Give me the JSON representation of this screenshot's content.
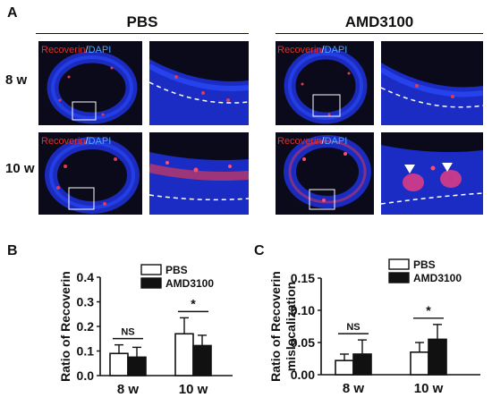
{
  "figure": {
    "panel_a_letter": "A",
    "panel_b_letter": "B",
    "panel_c_letter": "C",
    "group_left_title": "PBS",
    "group_right_title": "AMD3100",
    "row_top_label": "8 w",
    "row_bottom_label": "10 w",
    "stain_red": "Recoverin",
    "stain_sep": "/",
    "stain_blue": "DAPI",
    "colors": {
      "red_stain": "#e0302a",
      "blue_stain": "#4aa6ff",
      "tissue_blue": "#1d2fd0",
      "tissue_red": "#e23a52"
    }
  },
  "chart_data": [
    {
      "type": "bar",
      "panel": "B",
      "categories": [
        "8 w",
        "10 w"
      ],
      "series": [
        {
          "name": "PBS",
          "values": [
            0.09,
            0.17
          ],
          "errors": [
            0.035,
            0.065
          ],
          "fill": "#ffffff"
        },
        {
          "name": "AMD3100",
          "values": [
            0.075,
            0.122
          ],
          "errors": [
            0.04,
            0.042
          ],
          "fill": "#111111"
        }
      ],
      "ylabel": "Ratio of Recoverin",
      "ylim": [
        0,
        0.4
      ],
      "yticks": [
        "0.0",
        "0.1",
        "0.2",
        "0.3",
        "0.4"
      ],
      "significance": [
        "NS",
        "*"
      ],
      "legend_position": "top-right",
      "grid": false
    },
    {
      "type": "bar",
      "panel": "C",
      "categories": [
        "8 w",
        "10 w"
      ],
      "series": [
        {
          "name": "PBS",
          "values": [
            0.022,
            0.035
          ],
          "errors": [
            0.01,
            0.015
          ],
          "fill": "#ffffff"
        },
        {
          "name": "AMD3100",
          "values": [
            0.032,
            0.055
          ],
          "errors": [
            0.022,
            0.023
          ],
          "fill": "#111111"
        }
      ],
      "ylabel": "Ratio of Recoverin mislocalization",
      "ylabel_lines": [
        "Ratio of Recoverin",
        "mislocalization"
      ],
      "ylim": [
        0,
        0.15
      ],
      "yticks": [
        "0.00",
        "0.05",
        "0.10",
        "0.15"
      ],
      "significance": [
        "NS",
        "*"
      ],
      "legend_position": "top-right",
      "grid": false
    }
  ]
}
